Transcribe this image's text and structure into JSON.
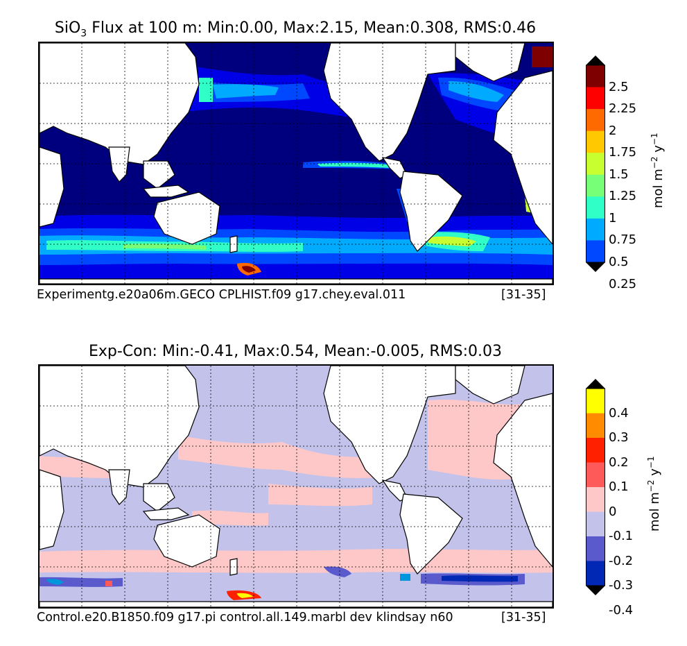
{
  "panels": [
    {
      "title_prefix": "SiO",
      "title_sub": "3",
      "title_rest": " Flux at 100 m: Min:0.00, Max:2.15, Mean:0.308, RMS:0.46",
      "caption_left": "Experimentg.e20a06m.GECO CPLHIST.f09 g17.chey.eval.011",
      "caption_right": "[31-35]",
      "colorbar": {
        "ticks": [
          "2.5",
          "2.25",
          "2",
          "1.75",
          "1.5",
          "1.25",
          "1",
          "0.75",
          "0.5",
          "0.25"
        ],
        "colors": [
          "#7f0000",
          "#ff0000",
          "#ff6a00",
          "#ffc800",
          "#c8ff30",
          "#78ff78",
          "#30ffc8",
          "#00aaff",
          "#0048ff",
          "#0000e6",
          "#00007f"
        ],
        "unit_main": "mol m",
        "unit_exp1": "−2",
        "unit_mid": " y",
        "unit_exp2": "−1"
      }
    },
    {
      "title": "Exp-Con: Min:-0.41, Max:0.54, Mean:-0.005, RMS:0.03",
      "caption_left": "Control.e20.B1850.f09 g17.pi control.all.149.marbl dev klindsay n60",
      "caption_right": "[31-35]",
      "colorbar": {
        "ticks": [
          "0.4",
          "0.3",
          "0.2",
          "0.1",
          "0",
          "-0.1",
          "-0.2",
          "-0.3",
          "-0.4"
        ],
        "colors": [
          "#ffff00",
          "#ff8c00",
          "#ff2000",
          "#ff5a5a",
          "#ffc8c8",
          "#c2c2eb",
          "#5a5acd",
          "#0028b4",
          "#0096dc",
          "#00ffff"
        ],
        "unit_main": "mol m",
        "unit_exp1": "−2",
        "unit_mid": " y",
        "unit_exp2": "−1"
      }
    }
  ]
}
